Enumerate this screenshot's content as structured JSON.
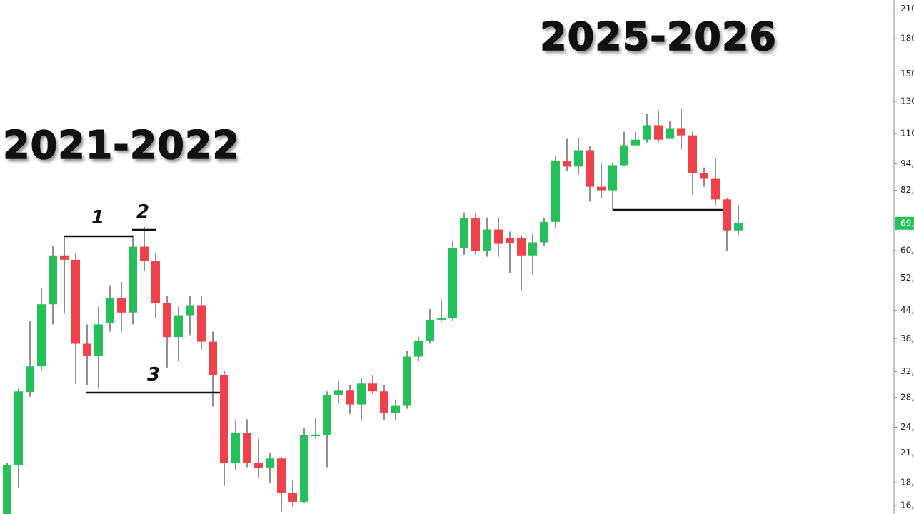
{
  "chart_data": {
    "type": "candlestick",
    "annotations": [
      "2021-2022",
      "2025-2026",
      "1",
      "2",
      "3"
    ],
    "log_scale": true,
    "up_color": "#25c05a",
    "down_color": "#f0424a",
    "ylim": [
      15.3,
      220
    ],
    "yticks": [
      210,
      180,
      150,
      130,
      110,
      {
        "value": 94,
        "label": "94,"
      },
      {
        "value": 82,
        "label": "82,"
      },
      {
        "value": 60,
        "label": "60,"
      },
      {
        "value": 52,
        "label": "52,"
      },
      {
        "value": 44,
        "label": "44,"
      },
      {
        "value": 38,
        "label": "38,"
      },
      {
        "value": 32,
        "label": "32,"
      },
      {
        "value": 28,
        "label": "28,"
      },
      {
        "value": 24,
        "label": "24,"
      },
      {
        "value": 21,
        "label": "21,"
      },
      {
        "value": 18,
        "label": "18,"
      },
      {
        "value": 16,
        "label": "16,"
      }
    ],
    "last_price": {
      "value": 69.1,
      "label": "69,"
    },
    "open": [
      15.3,
      19.7,
      28.8,
      32.9,
      45.4,
      58.5,
      57.2,
      37.0,
      34.8,
      41.2,
      46.9,
      43.5,
      61.2,
      56.8,
      45.7,
      38.3,
      42.9,
      45.2,
      37.4,
      31.5,
      19.9,
      23.3,
      19.9,
      19.4,
      20.4,
      17.1,
      16.3,
      22.9,
      23.0,
      28.4,
      29.0,
      27.0,
      30.1,
      28.9,
      25.8,
      26.8,
      34.6,
      37.6,
      41.9,
      42.2,
      60.8,
      70.9,
      59.8,
      66.9,
      64.0,
      64.0,
      58.5,
      62.6,
      69.6,
      95.4,
      92.7,
      100.9,
      83.5,
      82.0,
      93.4,
      103.5,
      106.6,
      114.9,
      107.0,
      113.2,
      109.0,
      89.6,
      87.0,
      78.2,
      66.6
    ],
    "high": [
      19.9,
      29.3,
      41.6,
      49.5,
      61.5,
      64.2,
      59.1,
      40.9,
      44.9,
      50.1,
      51.0,
      65.0,
      67.9,
      59.1,
      47.4,
      44.9,
      47.4,
      47.4,
      39.4,
      32.1,
      24.8,
      25.0,
      22.6,
      21.0,
      20.6,
      18.3,
      23.9,
      25.2,
      28.9,
      30.6,
      29.8,
      30.9,
      31.5,
      29.8,
      27.7,
      35.6,
      38.4,
      44.3,
      46.6,
      63.1,
      73.1,
      73.1,
      71.2,
      71.2,
      66.2,
      65.0,
      65.4,
      71.2,
      98.3,
      107.0,
      107.8,
      103.2,
      94.1,
      94.7,
      111.1,
      111.1,
      121.9,
      124.1,
      117.4,
      125.5,
      111.1,
      92.3,
      96.9,
      78.7,
      75.9
    ],
    "low": [
      15.3,
      17.5,
      28.1,
      32.3,
      40.9,
      43.2,
      30.0,
      29.8,
      29.3,
      39.4,
      39.4,
      40.9,
      54.0,
      42.4,
      32.7,
      33.9,
      38.7,
      35.9,
      26.7,
      17.7,
      19.2,
      19.5,
      18.5,
      18.0,
      15.5,
      15.9,
      16.2,
      22.6,
      19.5,
      27.2,
      25.7,
      24.8,
      28.5,
      24.9,
      24.8,
      26.4,
      33.9,
      37.0,
      41.6,
      41.6,
      58.7,
      58.7,
      58.1,
      58.1,
      53.4,
      48.8,
      53.0,
      61.5,
      67.4,
      90.6,
      88.9,
      77.3,
      78.7,
      73.9,
      92.7,
      103.2,
      105.1,
      105.1,
      107.0,
      101.3,
      80.2,
      83.5,
      75.9,
      59.8,
      65.0
    ],
    "close": [
      19.7,
      28.9,
      32.9,
      45.4,
      58.5,
      57.2,
      37.0,
      34.8,
      40.9,
      46.9,
      43.5,
      61.2,
      56.8,
      45.7,
      38.3,
      42.9,
      45.2,
      37.4,
      31.5,
      19.9,
      23.3,
      19.9,
      19.4,
      20.4,
      17.1,
      16.3,
      23.0,
      23.1,
      28.4,
      29.0,
      27.0,
      30.1,
      28.9,
      25.8,
      26.8,
      34.6,
      37.6,
      41.9,
      42.2,
      60.8,
      70.9,
      59.8,
      66.9,
      62.1,
      62.4,
      58.5,
      62.6,
      69.6,
      95.4,
      92.7,
      100.9,
      83.5,
      82.0,
      93.4,
      103.5,
      106.6,
      114.9,
      106.6,
      113.2,
      109.0,
      89.6,
      87.0,
      78.2,
      66.6,
      69.1
    ]
  }
}
